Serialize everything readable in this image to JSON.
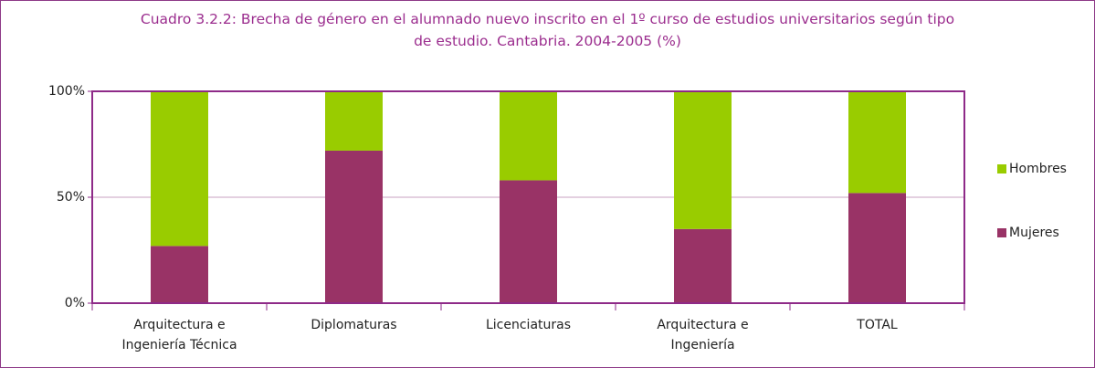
{
  "chart_data": {
    "type": "stacked_bar_100",
    "title": "Cuadro 3.2.2: Brecha de género en el alumnado nuevo inscrito en el 1º curso de estudios universitarios según tipo\nde estudio. Cantabria. 2004-2005 (%)",
    "categories": [
      "Arquitectura e\nIngeniería Técnica",
      "Diplomaturas",
      "Licenciaturas",
      "Arquitectura e\nIngeniería",
      "TOTAL"
    ],
    "series": [
      {
        "name": "Mujeres",
        "color": "#993366",
        "values": [
          27,
          72,
          58,
          35,
          52
        ]
      },
      {
        "name": "Hombres",
        "color": "#99cc00",
        "values": [
          73,
          28,
          42,
          65,
          48
        ]
      }
    ],
    "ylim": [
      0,
      100
    ],
    "yticks": [
      {
        "value": 0,
        "label": "0%"
      },
      {
        "value": 50,
        "label": "50%"
      },
      {
        "value": 100,
        "label": "100%"
      }
    ],
    "grid": true,
    "legend": "right"
  }
}
